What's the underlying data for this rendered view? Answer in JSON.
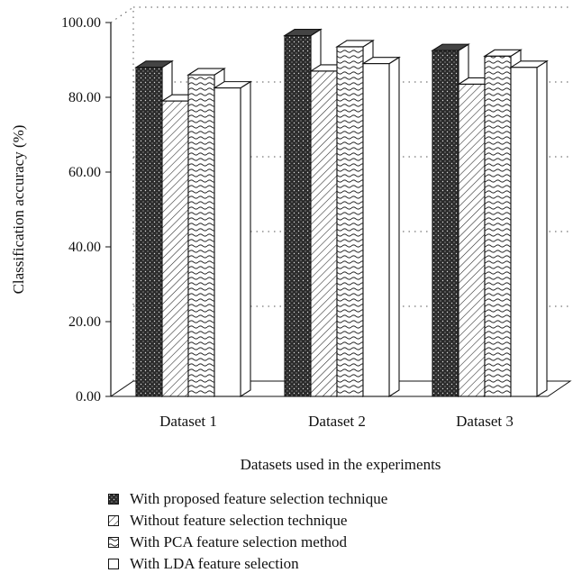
{
  "chart_data": {
    "type": "bar",
    "style": "3d-clustered",
    "title": "",
    "xlabel": "Datasets used in the experiments",
    "ylabel": "Classification accuracy (%)",
    "categories": [
      "Dataset 1",
      "Dataset 2",
      "Dataset 3"
    ],
    "ylim": [
      0,
      100
    ],
    "yticks": [
      "0.00",
      "20.00",
      "40.00",
      "60.00",
      "80.00",
      "100.00"
    ],
    "grid": "dotted back-wall gridlines",
    "legend_position": "bottom",
    "series": [
      {
        "name": "With proposed feature selection technique",
        "pattern": "dark-dots",
        "values": [
          88,
          96.5,
          92.5
        ]
      },
      {
        "name": "Without feature selection technique",
        "pattern": "diagonal-lines",
        "values": [
          79,
          87,
          83.5
        ]
      },
      {
        "name": "With PCA feature selection method",
        "pattern": "wavy-lines",
        "values": [
          86,
          93.5,
          91
        ]
      },
      {
        "name": "With LDA feature selection",
        "pattern": "plain",
        "values": [
          82.5,
          89,
          88
        ]
      }
    ]
  }
}
